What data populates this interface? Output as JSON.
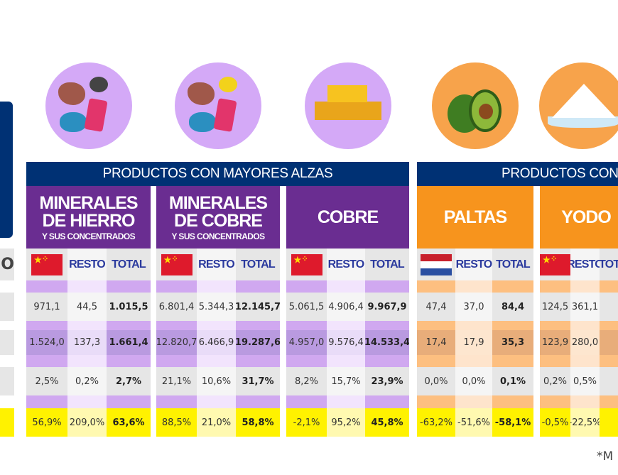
{
  "left_panel": {
    "partial_label": "O"
  },
  "groups": [
    {
      "title": "PRODUCTOS CON MAYORES ALZAS",
      "theme": "purple"
    },
    {
      "title": "PRODUCTOS CON",
      "theme": "orange"
    }
  ],
  "column_headers": {
    "resto": "RESTO",
    "total": "TOTAL"
  },
  "products": [
    {
      "name_lines": [
        "MINERALES",
        "DE HIERRO"
      ],
      "subtitle": "Y SUS CONCENTRADOS",
      "icon": "minerals-icon",
      "flag": "china-flag",
      "group": 0,
      "rows": [
        [
          "971,1",
          "44,5",
          "1.015,5"
        ],
        [
          "1.524,0",
          "137,3",
          "1.661,4"
        ],
        [
          "2,5%",
          "0,2%",
          "2,7%"
        ],
        [
          "56,9%",
          "209,0%",
          "63,6%"
        ]
      ]
    },
    {
      "name_lines": [
        "MINERALES",
        "DE COBRE"
      ],
      "subtitle": "Y SUS CONCENTRADOS",
      "icon": "minerals-icon",
      "flag": "china-flag",
      "group": 0,
      "rows": [
        [
          "6.801,4",
          "5.344,3",
          "12.145,7"
        ],
        [
          "12.820,7",
          "6.466,9",
          "19.287,6"
        ],
        [
          "21,1%",
          "10,6%",
          "31,7%"
        ],
        [
          "88,5%",
          "21,0%",
          "58,8%"
        ]
      ]
    },
    {
      "name_lines": [
        "COBRE"
      ],
      "subtitle": "",
      "icon": "copper-bars-icon",
      "flag": "china-flag",
      "group": 0,
      "rows": [
        [
          "5.061,5",
          "4.906,4",
          "9.967,9"
        ],
        [
          "4.957,0",
          "9.576,4",
          "14.533,4"
        ],
        [
          "8,2%",
          "15,7%",
          "23,9%"
        ],
        [
          "-2,1%",
          "95,2%",
          "45,8%"
        ]
      ]
    },
    {
      "name_lines": [
        "PALTAS"
      ],
      "subtitle": "",
      "icon": "avocado-icon",
      "flag": "netherlands-flag",
      "group": 1,
      "rows": [
        [
          "47,4",
          "37,0",
          "84,4"
        ],
        [
          "17,4",
          "17,9",
          "35,3"
        ],
        [
          "0,0%",
          "0,0%",
          "0,1%"
        ],
        [
          "-63,2%",
          "-51,6%",
          "-58,1%"
        ]
      ]
    },
    {
      "name_lines": [
        "YODO"
      ],
      "subtitle": "",
      "icon": "iodine-icon",
      "flag": "china-flag",
      "group": 1,
      "rows": [
        [
          "124,5",
          "361,1",
          ""
        ],
        [
          "123,9",
          "280,0",
          ""
        ],
        [
          "0,2%",
          "0,5%",
          ""
        ],
        [
          "-0,5%",
          "-22,5%",
          ""
        ]
      ]
    }
  ],
  "colors": {
    "navy": "#003174",
    "purple": "#6a2d91",
    "orange": "#f7941d",
    "yellow": "#fff200"
  },
  "footnote": "*M"
}
